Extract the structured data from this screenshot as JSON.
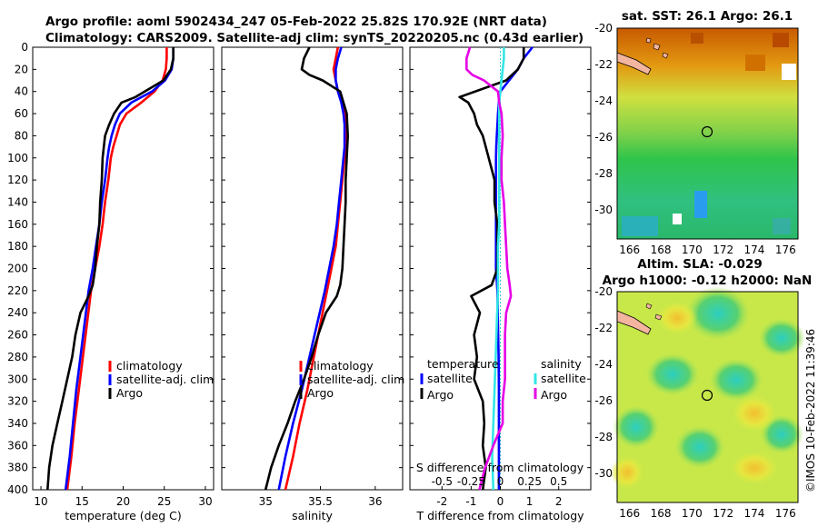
{
  "title": {
    "line1": "Argo profile: aoml 5902434_247 05-Feb-2022 25.82S 170.92E (NRT data)",
    "line2": "Climatology: CARS2009. Satellite-adj clim: synTS_20220205.nc (0.43d earlier)"
  },
  "colors": {
    "climatology": "#ff0000",
    "satellite": "#0000ff",
    "argo": "#000000",
    "sal_satellite": "#33e6e6",
    "sal_argo": "#e600e6"
  },
  "legend_labels": {
    "climatology": "climatology",
    "satellite_clim": "satellite-adj. clim",
    "argo": "Argo",
    "temperature_head": "temperature",
    "salinity_head": "salinity",
    "satellite": "satellite"
  },
  "depth_ticks": [
    "0",
    "20",
    "40",
    "60",
    "80",
    "100",
    "120",
    "140",
    "160",
    "180",
    "200",
    "220",
    "240",
    "260",
    "280",
    "300",
    "320",
    "340",
    "360",
    "380",
    "400"
  ],
  "right_panels": {
    "sst_title": "sat. SST: 26.1 Argo: 26.1",
    "sla_title1": "Altim. SLA: -0.029",
    "sla_title2": "Argo h1000: -0.12 h2000: NaN",
    "lat_ticks": [
      "-20",
      "-22",
      "-24",
      "-26",
      "-28",
      "-30"
    ],
    "lon_ticks": [
      "166",
      "168",
      "170",
      "172",
      "174",
      "176"
    ],
    "side_text": "©IMOS 10-Feb-2022 11:39:46"
  },
  "chart_data": [
    {
      "type": "line",
      "title": "",
      "xlabel": "temperature (deg C)",
      "ylabel": "",
      "xlim": [
        9,
        31
      ],
      "ylim": [
        400,
        0
      ],
      "xticks": [
        "10",
        "15",
        "20",
        "25",
        "30"
      ],
      "legend_position": "bottom-right",
      "series": [
        {
          "name": "climatology",
          "x": [
            25.3,
            25.3,
            25.2,
            24.8,
            23.8,
            22.2,
            20.4,
            19.6,
            19.2,
            18.8,
            18.5,
            18.2,
            17.8,
            17.5,
            17.1,
            16.6,
            16.1,
            15.6,
            15.1,
            14.6,
            14.1,
            13.7,
            13.2
          ],
          "y": [
            0,
            10,
            20,
            30,
            40,
            50,
            60,
            70,
            80,
            90,
            100,
            120,
            140,
            160,
            180,
            200,
            220,
            250,
            280,
            310,
            340,
            370,
            400
          ]
        },
        {
          "name": "satellite-adj. clim",
          "x": [
            26.1,
            26.1,
            25.9,
            25.1,
            23.5,
            21.0,
            19.6,
            19.0,
            18.6,
            18.3,
            18.1,
            17.8,
            17.4,
            17.1,
            16.7,
            16.3,
            15.8,
            15.3,
            14.8,
            14.3,
            13.9,
            13.5,
            13.0
          ],
          "y": [
            0,
            10,
            20,
            30,
            40,
            50,
            60,
            70,
            80,
            90,
            100,
            120,
            140,
            160,
            180,
            200,
            220,
            250,
            280,
            310,
            340,
            370,
            400
          ]
        },
        {
          "name": "Argo",
          "x": [
            26.1,
            26.1,
            25.8,
            24.9,
            21.5,
            19.8,
            18.9,
            18.3,
            17.8,
            17.5,
            17.4,
            17.2,
            17.1,
            16.8,
            16.6,
            16.3,
            15.8,
            14.8,
            14.2,
            13.8,
            13.2,
            12.6,
            12.0,
            11.4,
            11.0,
            10.8
          ],
          "y": [
            0,
            10,
            20,
            30,
            45,
            50,
            60,
            70,
            80,
            100,
            120,
            140,
            160,
            180,
            200,
            215,
            225,
            240,
            260,
            280,
            300,
            320,
            340,
            360,
            380,
            400
          ]
        }
      ]
    },
    {
      "type": "line",
      "title": "",
      "xlabel": "salinity",
      "ylabel": "",
      "xlim": [
        34.6,
        36.25
      ],
      "ylim": [
        400,
        0
      ],
      "xticks": [
        "35",
        "35.5",
        "36"
      ],
      "legend_position": "bottom-right",
      "series": [
        {
          "name": "climatology",
          "x": [
            35.66,
            35.64,
            35.62,
            35.64,
            35.66,
            35.7,
            35.72,
            35.73,
            35.73,
            35.73,
            35.72,
            35.7,
            35.68,
            35.66,
            35.64,
            35.6,
            35.56,
            35.5,
            35.44,
            35.38,
            35.31,
            35.25,
            35.18
          ],
          "y": [
            0,
            10,
            20,
            30,
            40,
            50,
            60,
            70,
            80,
            90,
            100,
            120,
            140,
            160,
            180,
            200,
            220,
            250,
            280,
            310,
            340,
            370,
            400
          ]
        },
        {
          "name": "satellite-adj. clim",
          "x": [
            35.69,
            35.66,
            35.64,
            35.64,
            35.66,
            35.69,
            35.71,
            35.72,
            35.72,
            35.72,
            35.71,
            35.69,
            35.67,
            35.65,
            35.62,
            35.58,
            35.54,
            35.47,
            35.4,
            35.33,
            35.25,
            35.18,
            35.12
          ],
          "y": [
            0,
            10,
            20,
            30,
            40,
            50,
            60,
            70,
            80,
            90,
            100,
            120,
            140,
            160,
            180,
            200,
            220,
            250,
            280,
            310,
            340,
            370,
            400
          ]
        },
        {
          "name": "Argo",
          "x": [
            35.4,
            35.35,
            35.33,
            35.4,
            35.52,
            35.68,
            35.71,
            35.74,
            35.75,
            35.74,
            35.73,
            35.73,
            35.72,
            35.71,
            35.7,
            35.68,
            35.65,
            35.55,
            35.48,
            35.42,
            35.35,
            35.27,
            35.2,
            35.12,
            35.05,
            35.0
          ],
          "y": [
            0,
            10,
            20,
            25,
            30,
            40,
            50,
            60,
            80,
            100,
            120,
            140,
            160,
            180,
            200,
            215,
            225,
            240,
            260,
            280,
            300,
            320,
            340,
            360,
            380,
            400
          ]
        }
      ]
    },
    {
      "type": "line",
      "title": "",
      "xlabel": "T difference from climatology",
      "ylabel": "",
      "xlim": [
        -3.1,
        3.1
      ],
      "ylim": [
        400,
        0
      ],
      "xticks": [
        "-2",
        "-1",
        "0",
        "1",
        "2"
      ],
      "xlabel_top": "S difference from climatology",
      "xticks_top": [
        "-0.5",
        "-0.25",
        "0",
        "0.25",
        "0.5"
      ],
      "xlim_top": [
        -0.775,
        0.775
      ],
      "legend_position": "bottom",
      "series": [
        {
          "name": "temperature satellite",
          "axis": "T",
          "x": [
            1.1,
            0.8,
            0.6,
            0.3,
            0.0,
            -0.05,
            -0.08,
            -0.1,
            -0.12,
            -0.14,
            -0.15,
            -0.15,
            -0.15,
            -0.15,
            -0.15,
            -0.15,
            -0.1,
            -0.08,
            -0.06,
            -0.05,
            -0.05,
            -0.05,
            -0.05
          ],
          "y": [
            0,
            10,
            20,
            30,
            40,
            50,
            60,
            70,
            80,
            90,
            100,
            120,
            140,
            160,
            180,
            200,
            220,
            250,
            280,
            310,
            340,
            370,
            400
          ]
        },
        {
          "name": "temperature Argo",
          "axis": "T",
          "x": [
            0.8,
            0.8,
            0.6,
            0.2,
            -1.4,
            -1.1,
            -0.9,
            -0.8,
            -0.6,
            -0.4,
            -0.2,
            -0.2,
            -0.1,
            -0.1,
            -0.1,
            -0.3,
            -1.0,
            -0.7,
            -0.9,
            -0.8,
            -0.9,
            -0.6,
            -0.55,
            -0.6,
            -0.5,
            -0.6
          ],
          "y": [
            0,
            10,
            20,
            30,
            45,
            50,
            60,
            70,
            80,
            100,
            120,
            140,
            160,
            180,
            200,
            215,
            225,
            240,
            260,
            280,
            300,
            320,
            340,
            360,
            380,
            400
          ]
        },
        {
          "name": "salinity satellite",
          "axis": "S",
          "x": [
            0.03,
            0.03,
            0.02,
            0.01,
            0.0,
            -0.01,
            -0.01,
            -0.01,
            -0.01,
            -0.01,
            -0.01,
            -0.01,
            -0.01,
            -0.01,
            -0.02,
            -0.02,
            -0.02,
            -0.03,
            -0.04,
            -0.05,
            -0.06,
            -0.07,
            -0.06
          ],
          "y": [
            0,
            10,
            20,
            30,
            40,
            50,
            60,
            70,
            80,
            90,
            100,
            120,
            140,
            160,
            180,
            200,
            220,
            250,
            280,
            310,
            340,
            370,
            400
          ]
        },
        {
          "name": "salinity Argo",
          "axis": "S",
          "x": [
            -0.26,
            -0.29,
            -0.29,
            -0.24,
            -0.14,
            -0.02,
            -0.01,
            0.01,
            0.02,
            0.01,
            0.01,
            0.03,
            0.04,
            0.05,
            0.06,
            0.08,
            0.09,
            0.05,
            0.04,
            0.04,
            0.04,
            0.02,
            0.02,
            -0.06,
            -0.13,
            -0.18
          ],
          "y": [
            0,
            10,
            20,
            25,
            30,
            40,
            50,
            60,
            80,
            100,
            120,
            140,
            160,
            180,
            200,
            215,
            225,
            240,
            260,
            280,
            300,
            320,
            340,
            360,
            380,
            400
          ]
        }
      ]
    }
  ]
}
